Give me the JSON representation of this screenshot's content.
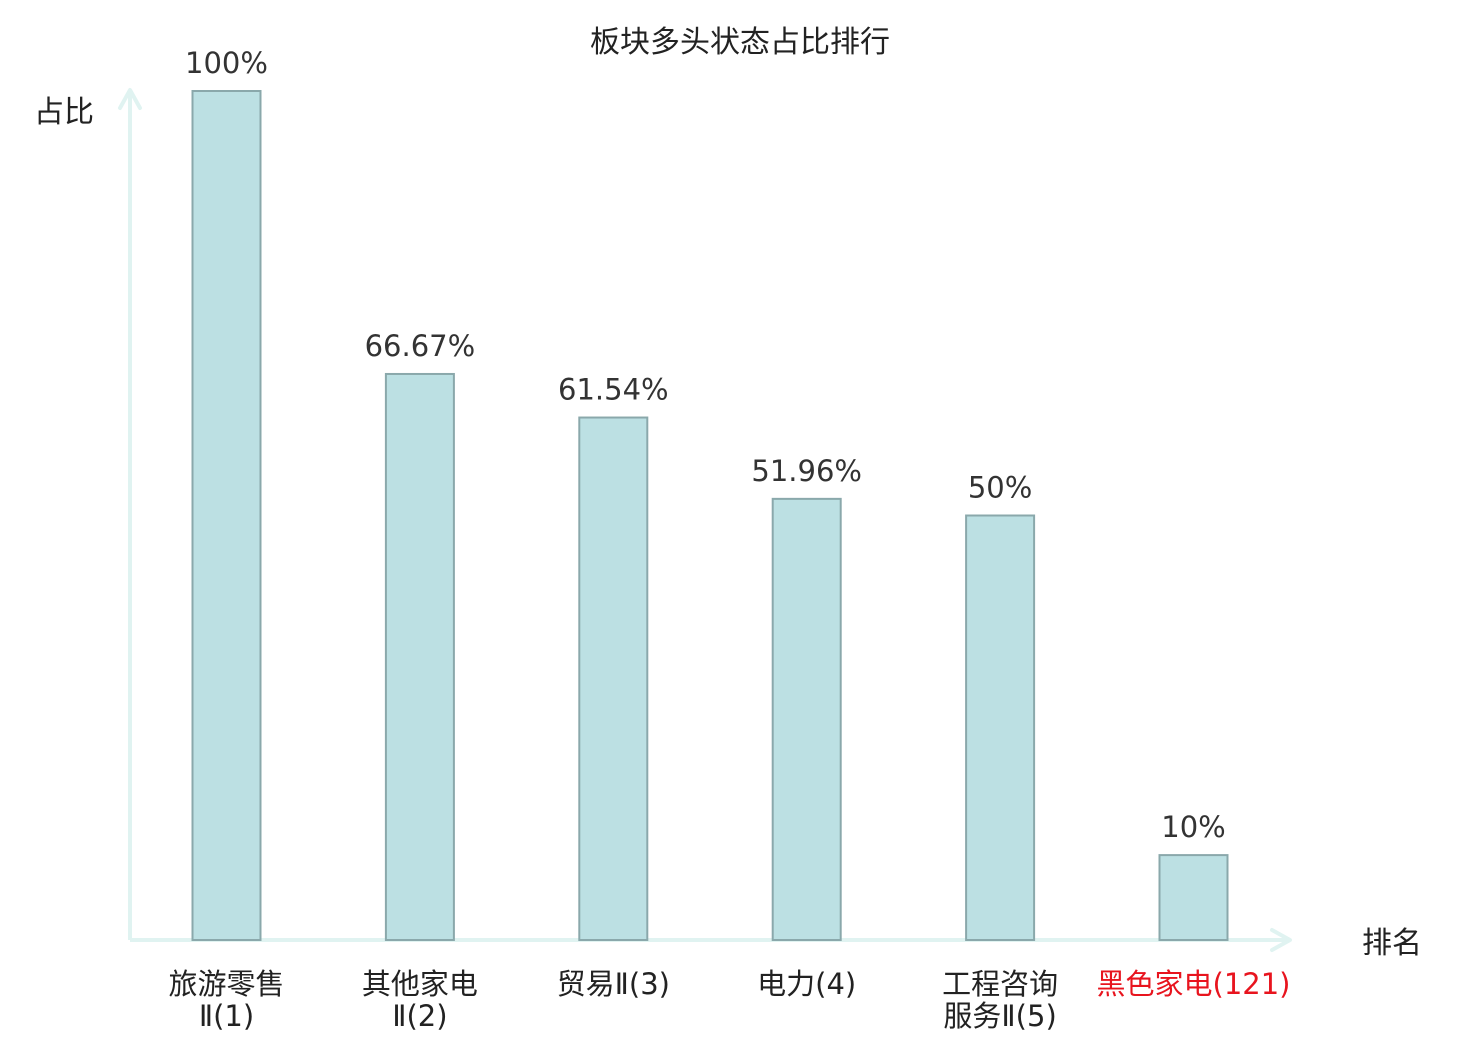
{
  "chart_data": {
    "type": "bar",
    "title": "板块多头状态占比排行",
    "ylabel": "占比",
    "xlabel": "排名",
    "ylim": [
      0,
      100
    ],
    "grid": false,
    "categories": [
      {
        "name": "旅游零售",
        "suffix": "Ⅱ(1)",
        "lines": [
          "旅游零售",
          "Ⅱ(1)"
        ],
        "highlight": false
      },
      {
        "name": "其他家电",
        "suffix": "Ⅱ(2)",
        "lines": [
          "其他家电",
          "Ⅱ(2)"
        ],
        "highlight": false
      },
      {
        "name": "贸易",
        "suffix": "Ⅱ(3)",
        "lines": [
          "贸易Ⅱ(3)"
        ],
        "highlight": false
      },
      {
        "name": "电力",
        "suffix": "(4)",
        "lines": [
          "电力(4)"
        ],
        "highlight": false
      },
      {
        "name": "工程咨询服务",
        "suffix": "Ⅱ(5)",
        "lines": [
          "工程咨询",
          "服务Ⅱ(5)"
        ],
        "highlight": false
      },
      {
        "name": "黑色家电",
        "suffix": "(121)",
        "lines": [
          "黑色家电(121)"
        ],
        "highlight": true
      }
    ],
    "values": [
      100,
      66.67,
      61.54,
      51.96,
      50,
      10
    ],
    "value_labels": [
      "100%",
      "66.67%",
      "61.54%",
      "51.96%",
      "50%",
      "10%"
    ],
    "colors": {
      "bar_fill": "#bce0e3",
      "bar_stroke": "#8aa8ab",
      "axis": "#e0f3f1",
      "text": "#222222",
      "value_text": "#333333",
      "highlight": "#e8141e"
    }
  }
}
